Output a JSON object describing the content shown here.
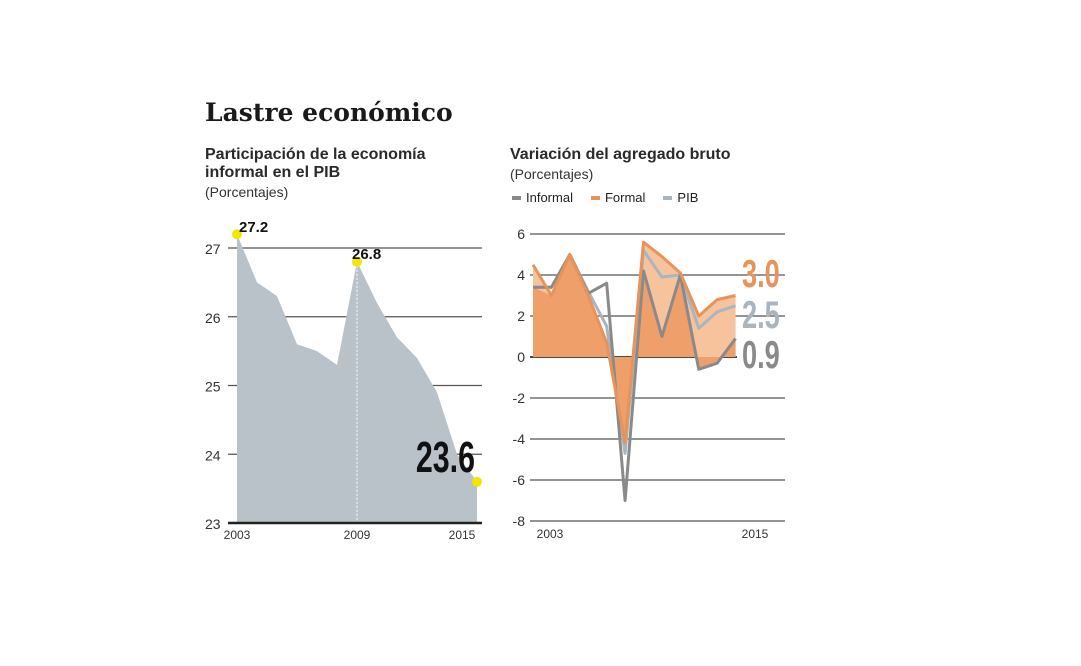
{
  "title": "Lastre económico",
  "chart_data": [
    {
      "type": "area",
      "title": "Participación de la economía informal en el PIB",
      "subtitle": "(Porcentajes)",
      "x": [
        2003,
        2004,
        2005,
        2006,
        2007,
        2008,
        2009,
        2010,
        2011,
        2012,
        2013,
        2014,
        2015
      ],
      "values": [
        27.2,
        26.5,
        26.3,
        25.6,
        25.5,
        25.3,
        26.8,
        26.2,
        25.7,
        25.4,
        24.9,
        24.0,
        23.6
      ],
      "ylim": [
        23,
        27
      ],
      "yticks": [
        "23",
        "24",
        "25",
        "26",
        "27"
      ],
      "xticks": [
        "2003",
        "2009",
        "2015"
      ],
      "annotations": [
        "27.2",
        "26.8",
        "23.6"
      ],
      "grid": true,
      "colors": {
        "fill": "#b9c2c8",
        "marker": "#f2e600"
      }
    },
    {
      "type": "line",
      "title": "Variación del agregado bruto",
      "subtitle": "(Porcentajes)",
      "x": [
        2003,
        2004,
        2005,
        2006,
        2007,
        2008,
        2009,
        2010,
        2011,
        2012,
        2013,
        2014
      ],
      "series": [
        {
          "name": "Informal",
          "color": "#8a8a8a",
          "values": [
            3.4,
            3.4,
            5.0,
            3.1,
            3.6,
            -7.0,
            4.2,
            1.0,
            4.0,
            -0.6,
            -0.3,
            0.9
          ]
        },
        {
          "name": "Formal",
          "color": "#e8935a",
          "values": [
            4.5,
            3.0,
            5.0,
            3.0,
            0.7,
            -4.2,
            5.6,
            4.9,
            4.1,
            2.0,
            2.8,
            3.0
          ]
        },
        {
          "name": "PIB",
          "color": "#a9b5bf",
          "values": [
            3.4,
            3.4,
            5.0,
            3.2,
            1.5,
            -4.7,
            5.2,
            3.9,
            4.0,
            1.4,
            2.2,
            2.5
          ]
        }
      ],
      "xlim": [
        2003,
        2015
      ],
      "ylim": [
        -8,
        6
      ],
      "yticks": [
        "-8",
        "-6",
        "-4",
        "-2",
        "0",
        "2",
        "4",
        "6"
      ],
      "xticks": [
        "2003",
        "2015"
      ],
      "end_labels": [
        "3.0",
        "2.5",
        "0.9"
      ],
      "legend": "top-left",
      "grid": true
    }
  ]
}
